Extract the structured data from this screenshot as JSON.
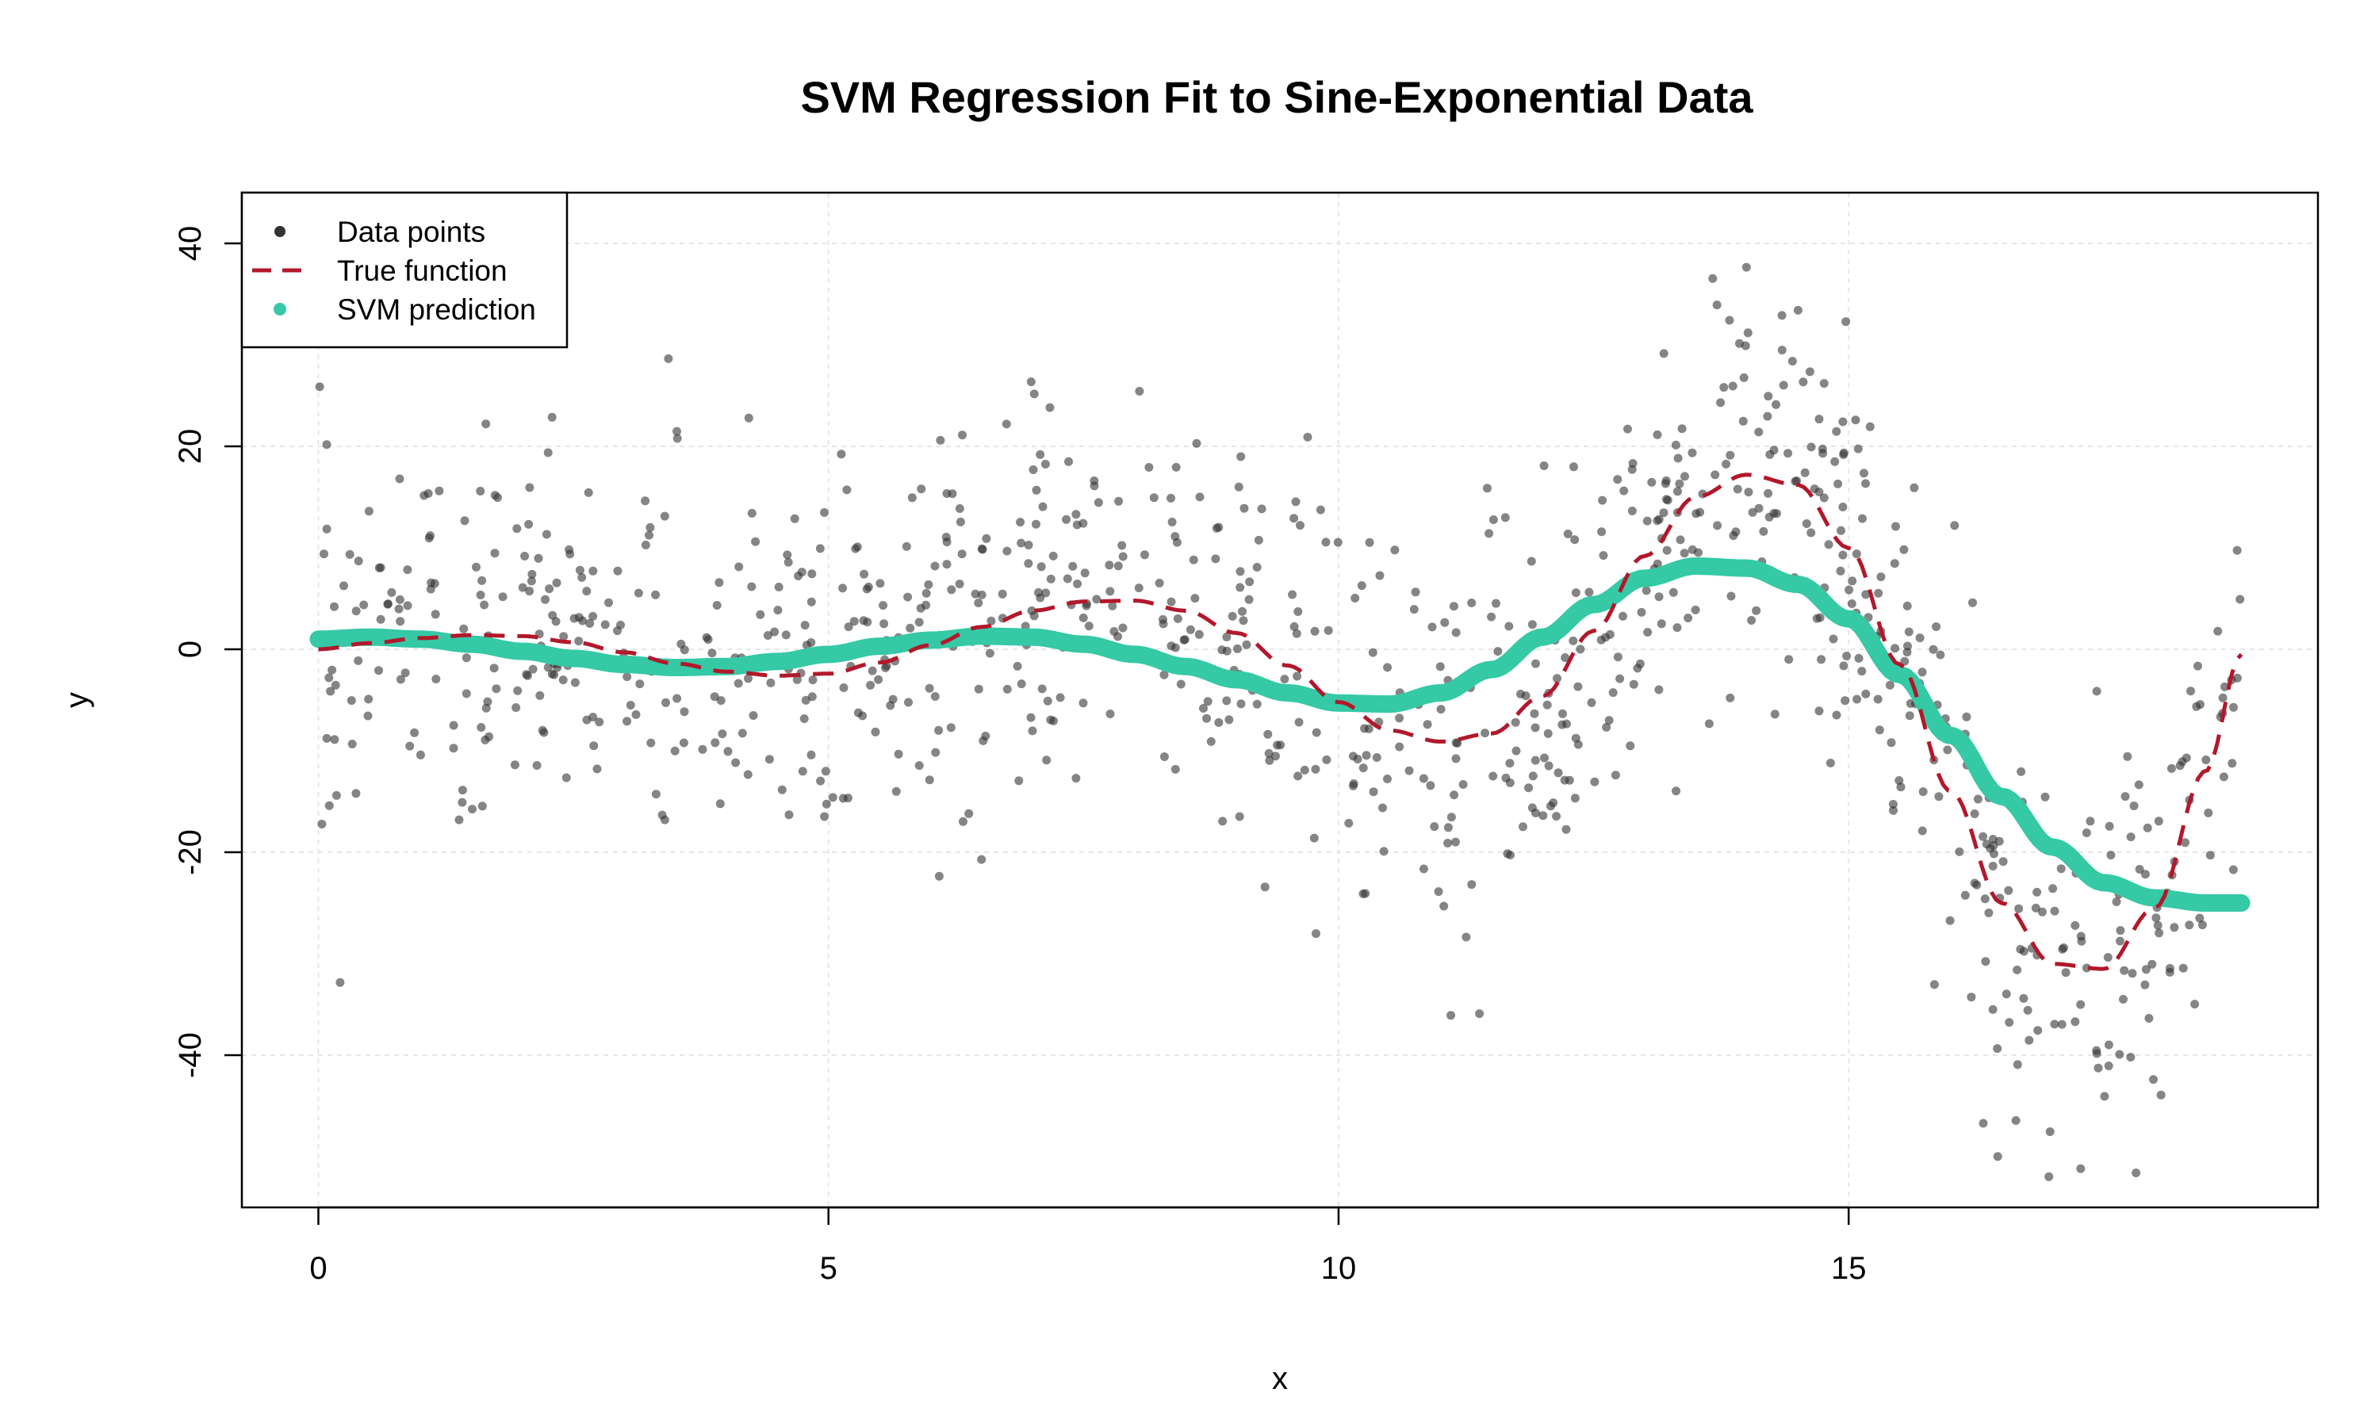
{
  "chart_data": {
    "type": "scatter",
    "title": "SVM Regression Fit to Sine-Exponential Data",
    "xlabel": "x",
    "ylabel": "y",
    "xlim": [
      -0.75,
      19.6
    ],
    "ylim": [
      -55,
      45
    ],
    "xticks": [
      0,
      5,
      10,
      15
    ],
    "yticks": [
      -40,
      -20,
      0,
      20,
      40
    ],
    "grid": true,
    "legend": {
      "placement": "top-left",
      "entries": [
        "Data points",
        "True function",
        "SVM prediction"
      ]
    },
    "colors": {
      "points": "#333333",
      "true_function": "#B2182B",
      "svm_prediction": "#35C9A6",
      "grid": "#e6e6e6"
    },
    "true_function": {
      "name": "True function",
      "x": [
        0,
        0.5,
        1,
        1.5,
        2,
        2.5,
        3,
        3.5,
        4,
        4.5,
        5,
        5.5,
        6,
        6.5,
        7,
        7.5,
        8,
        8.5,
        9,
        9.5,
        10,
        10.5,
        11,
        11.5,
        12,
        12.5,
        13,
        13.5,
        14,
        14.5,
        15,
        15.5,
        16,
        16.5,
        17,
        17.5,
        18,
        18.5,
        18.85
      ],
      "values": [
        0,
        0.6,
        1.1,
        1.4,
        1.3,
        0.7,
        -0.3,
        -1.4,
        -2.2,
        -2.6,
        -2.4,
        -1.3,
        0.4,
        2.2,
        3.8,
        4.7,
        4.8,
        3.8,
        1.6,
        -1.6,
        -5.2,
        -8.0,
        -9.1,
        -8.3,
        -4.6,
        1.8,
        9.2,
        15.0,
        17.2,
        16.2,
        10.0,
        -1.5,
        -14.0,
        -25.0,
        -31.0,
        -31.5,
        -25.5,
        -12.0,
        -0.5
      ]
    },
    "svm_prediction": {
      "name": "SVM prediction",
      "x": [
        0,
        0.5,
        1,
        1.5,
        2,
        2.5,
        3,
        3.5,
        4,
        4.5,
        5,
        5.5,
        6,
        6.5,
        7,
        7.5,
        8,
        8.5,
        9,
        9.5,
        10,
        10.5,
        11,
        11.5,
        12,
        12.5,
        13,
        13.5,
        14,
        14.5,
        15,
        15.5,
        16,
        16.5,
        17,
        17.5,
        18,
        18.5,
        18.85
      ],
      "values": [
        1.0,
        1.2,
        1.0,
        0.5,
        -0.2,
        -0.9,
        -1.5,
        -1.8,
        -1.7,
        -1.2,
        -0.5,
        0.3,
        0.9,
        1.3,
        1.2,
        0.5,
        -0.5,
        -1.7,
        -3.0,
        -4.3,
        -5.3,
        -5.4,
        -4.3,
        -2.0,
        1.2,
        4.4,
        7.0,
        8.2,
        8.0,
        6.4,
        3.0,
        -2.5,
        -8.5,
        -14.5,
        -19.5,
        -23.0,
        -24.5,
        -25.0,
        -25.0
      ]
    }
  }
}
